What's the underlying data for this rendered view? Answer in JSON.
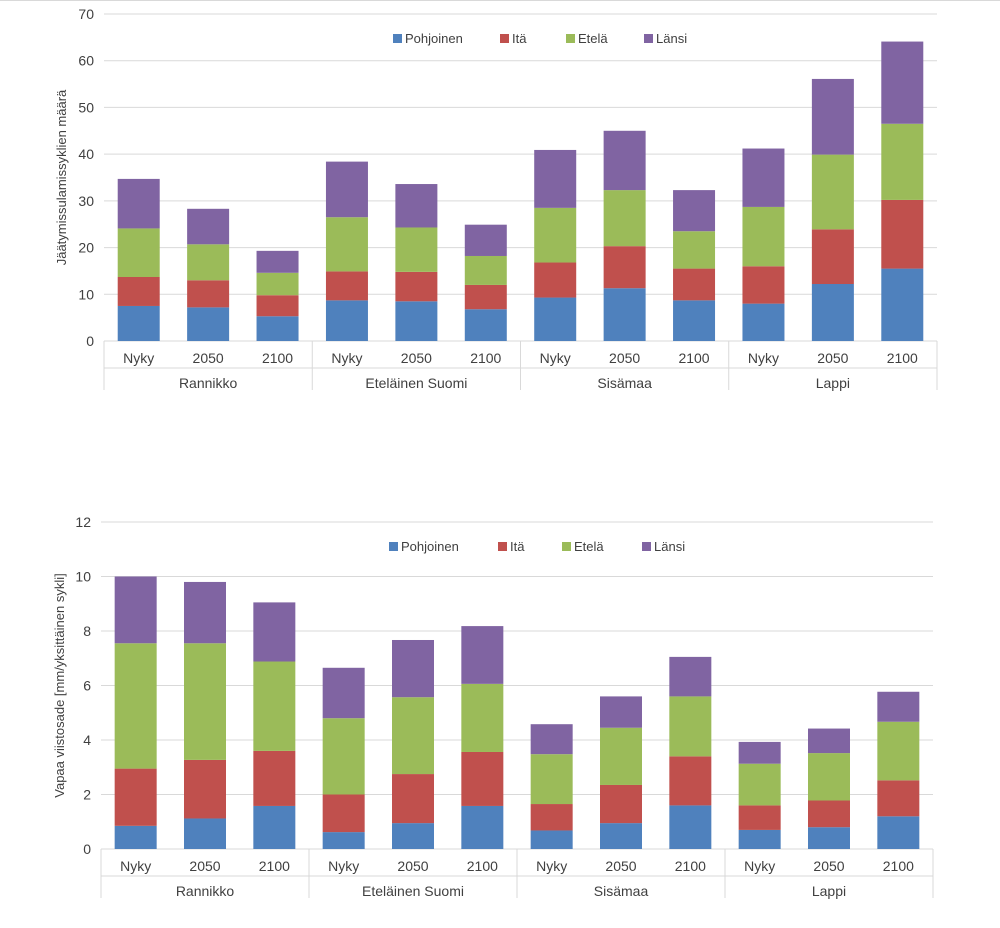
{
  "colors": {
    "Pohjoinen": "#4f81bd",
    "Itä": "#c0504d",
    "Etelä": "#9bbb59",
    "Länsi": "#8064a2",
    "grid": "#d9d9d9",
    "text": "#404040"
  },
  "chart_data": [
    {
      "type": "bar",
      "stacked": true,
      "ylabel": "Jäätymissulamissyklien määrä",
      "ylim": [
        0,
        70
      ],
      "yticks": [
        0,
        10,
        20,
        30,
        40,
        50,
        60,
        70
      ],
      "grid": true,
      "legend_position": "top",
      "groups": [
        {
          "label": "Rannikko",
          "categories": [
            "Nyky",
            "2050",
            "2100"
          ]
        },
        {
          "label": "Eteläinen Suomi",
          "categories": [
            "Nyky",
            "2050",
            "2100"
          ]
        },
        {
          "label": "Sisämaa",
          "categories": [
            "Nyky",
            "2050",
            "2100"
          ]
        },
        {
          "label": "Lappi",
          "categories": [
            "Nyky",
            "2050",
            "2100"
          ]
        }
      ],
      "series": [
        {
          "name": "Pohjoinen",
          "values": [
            7.5,
            7.2,
            5.3,
            8.7,
            8.5,
            6.8,
            9.3,
            11.3,
            8.7,
            8.0,
            12.2,
            15.5
          ]
        },
        {
          "name": "Itä",
          "values": [
            6.2,
            5.8,
            4.5,
            6.2,
            6.3,
            5.2,
            7.5,
            9.0,
            6.8,
            8.0,
            11.7,
            14.7
          ]
        },
        {
          "name": "Etelä",
          "values": [
            10.4,
            7.7,
            4.8,
            11.6,
            9.5,
            6.2,
            11.7,
            12.0,
            8.0,
            12.7,
            16.0,
            16.3
          ]
        },
        {
          "name": "Länsi",
          "values": [
            10.6,
            7.6,
            4.7,
            11.9,
            9.3,
            6.7,
            12.4,
            12.7,
            8.8,
            12.5,
            16.2,
            17.6
          ]
        }
      ]
    },
    {
      "type": "bar",
      "stacked": true,
      "ylabel": "Vapaa viistosade [mm/yksittäinen sykli]",
      "ylim": [
        0,
        12
      ],
      "yticks": [
        0,
        2,
        4,
        6,
        8,
        10,
        12
      ],
      "grid": true,
      "legend_position": "top",
      "groups": [
        {
          "label": "Rannikko",
          "categories": [
            "Nyky",
            "2050",
            "2100"
          ]
        },
        {
          "label": "Eteläinen Suomi",
          "categories": [
            "Nyky",
            "2050",
            "2100"
          ]
        },
        {
          "label": "Sisämaa",
          "categories": [
            "Nyky",
            "2050",
            "2100"
          ]
        },
        {
          "label": "Lappi",
          "categories": [
            "Nyky",
            "2050",
            "2100"
          ]
        }
      ],
      "series": [
        {
          "name": "Pohjoinen",
          "values": [
            0.85,
            1.12,
            1.58,
            0.62,
            0.95,
            1.58,
            0.68,
            0.95,
            1.6,
            0.7,
            0.8,
            1.2
          ]
        },
        {
          "name": "Itä",
          "values": [
            2.1,
            2.15,
            2.02,
            1.38,
            1.8,
            1.98,
            0.97,
            1.4,
            1.8,
            0.9,
            0.98,
            1.32
          ]
        },
        {
          "name": "Etelä",
          "values": [
            4.6,
            4.28,
            3.28,
            2.8,
            2.82,
            2.5,
            1.83,
            2.1,
            2.2,
            1.53,
            1.74,
            2.15
          ]
        },
        {
          "name": "Länsi",
          "values": [
            2.45,
            2.25,
            2.17,
            1.85,
            2.1,
            2.12,
            1.1,
            1.15,
            1.45,
            0.8,
            0.9,
            1.1
          ]
        }
      ]
    }
  ]
}
